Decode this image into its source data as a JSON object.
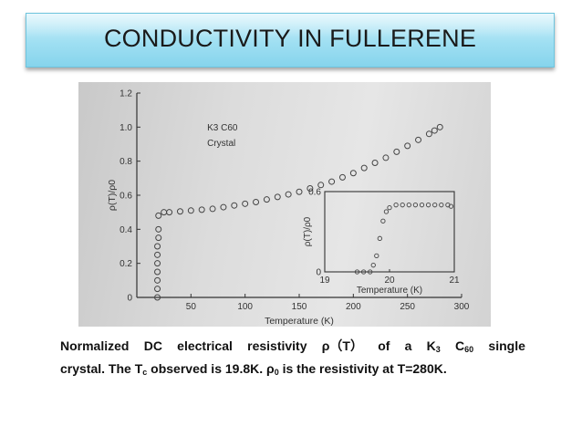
{
  "slide": {
    "title": "CONDUCTIVITY IN FULLERENE"
  },
  "caption": {
    "w1": "Normalized",
    "w2": "DC",
    "w3": "electrical",
    "w4": "resistivity",
    "w5": "ρ（T）",
    "w6": "of",
    "w7": "a",
    "k": "K",
    "k_sub": "3",
    "c": "C",
    "c_sub": "60",
    "w8": "single",
    "l2a": "crystal. The T",
    "tc_sub": "c",
    "l2b": " observed is 19.8K. ρ",
    "rho_sub": "0",
    "l2c": " is the resistivity at T=280K."
  },
  "chart_data": [
    {
      "type": "scatter",
      "title": "",
      "xlabel": "Temperature (K)",
      "ylabel": "ρ(T)/ρ0",
      "xlim": [
        0,
        300
      ],
      "ylim": [
        0,
        1.2
      ],
      "xticks": [
        "50",
        "100",
        "150",
        "200",
        "250",
        "300"
      ],
      "yticks": [
        "0",
        "0.2",
        "0.4",
        "0.6",
        "0.8",
        "1.0",
        "1.2"
      ],
      "annotation": [
        "K3 C60",
        "Crystal"
      ],
      "grid": false,
      "series": [
        {
          "x": [
            19,
            19,
            19,
            19,
            19,
            19,
            19,
            20,
            20,
            20,
            25,
            30,
            40,
            50,
            60,
            70,
            80,
            90,
            100,
            110,
            120,
            130,
            140,
            150,
            160,
            170,
            180,
            190,
            200,
            210,
            220,
            230,
            240,
            250,
            260,
            270,
            275,
            280
          ],
          "y": [
            0.0,
            0.05,
            0.1,
            0.15,
            0.2,
            0.25,
            0.3,
            0.35,
            0.4,
            0.48,
            0.5,
            0.5,
            0.505,
            0.51,
            0.515,
            0.52,
            0.53,
            0.54,
            0.55,
            0.56,
            0.575,
            0.59,
            0.605,
            0.62,
            0.64,
            0.66,
            0.68,
            0.705,
            0.73,
            0.76,
            0.79,
            0.82,
            0.855,
            0.89,
            0.925,
            0.96,
            0.98,
            1.0
          ]
        }
      ]
    },
    {
      "type": "scatter",
      "title": "",
      "xlabel": "Temperature (K)",
      "ylabel": "ρ(T)/ρ0",
      "xlim": [
        19,
        21
      ],
      "ylim": [
        0,
        0.6
      ],
      "xticks": [
        "19",
        "20",
        "21"
      ],
      "yticks": [
        "0",
        "0.6"
      ],
      "grid": false,
      "series": [
        {
          "x": [
            19.5,
            19.6,
            19.7,
            19.75,
            19.8,
            19.85,
            19.9,
            19.95,
            20.0,
            20.1,
            20.2,
            20.3,
            20.4,
            20.5,
            20.6,
            20.7,
            20.8,
            20.9,
            20.95
          ],
          "y": [
            0.0,
            0.0,
            0.0,
            0.05,
            0.12,
            0.25,
            0.38,
            0.45,
            0.48,
            0.5,
            0.5,
            0.5,
            0.5,
            0.5,
            0.5,
            0.5,
            0.5,
            0.5,
            0.49
          ]
        }
      ]
    }
  ]
}
